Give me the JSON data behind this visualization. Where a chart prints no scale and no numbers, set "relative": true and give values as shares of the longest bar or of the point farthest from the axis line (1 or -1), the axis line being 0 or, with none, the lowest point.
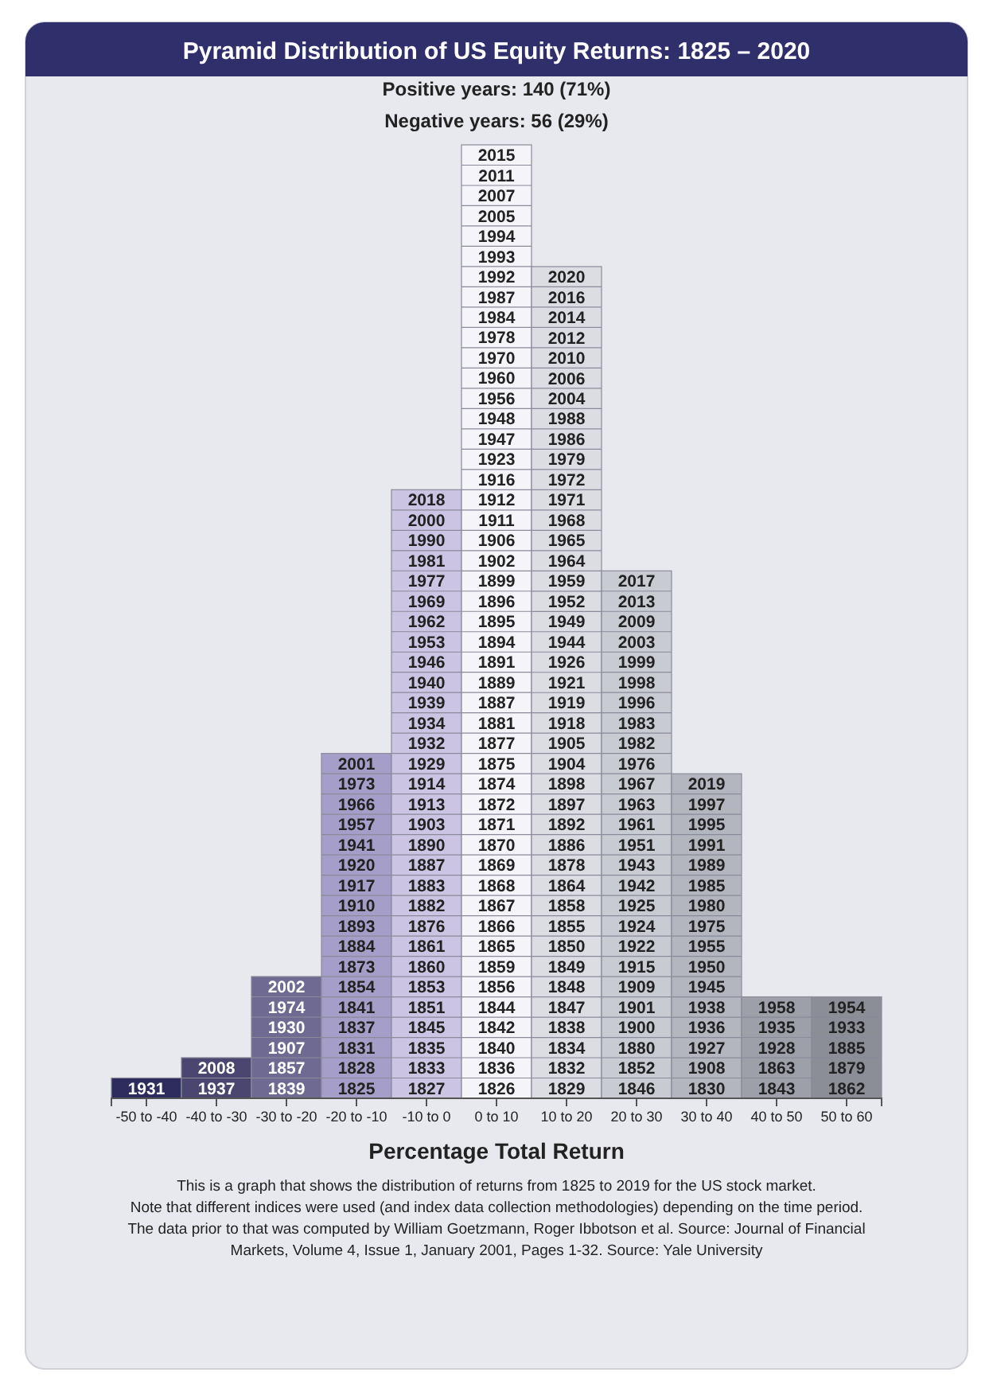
{
  "chart_data": {
    "type": "bar",
    "title": "Pyramid Distribution of US Equity Returns: 1825 – 2020",
    "subtitle": "Positive years: 140 (71%)\nNegative years: 56 (29%)",
    "xlabel": "Percentage Total Return",
    "relative": true,
    "categories": [
      "-50 to -40",
      "-40 to -30",
      "-30 to -20",
      "-20 to -10",
      "-10 to 0",
      "0 to 10",
      "10 to 20",
      "20 to 30",
      "30 to 40",
      "40 to 50",
      "50 to 60"
    ],
    "values": [
      0.0213,
      0.0426,
      0.1277,
      0.3617,
      0.6383,
      1,
      0.8723,
      0.5532,
      0.3404,
      0.1064,
      0.1064
    ],
    "colors": [
      "#2e2b5f",
      "#4a4670",
      "#6e6a92",
      "#a59ec8",
      "#cbc5e3",
      "#f5f5f9",
      "#dcdde3",
      "#c9cbd3",
      "#b4b6bf",
      "#9d9fa9",
      "#8b8d97"
    ],
    "annotations": [
      "1931",
      "1937",
      "2008",
      "1839",
      "1857",
      "1907",
      "1930",
      "1974",
      "2002",
      "1825",
      "1828",
      "1831",
      "1837",
      "1841",
      "1854",
      "1873",
      "1884",
      "1893",
      "1910",
      "1917",
      "1920",
      "1941",
      "1957",
      "1966",
      "1973",
      "2001",
      "1827",
      "1833",
      "1835",
      "1845",
      "1851",
      "1853",
      "1860",
      "1861",
      "1876",
      "1882",
      "1883",
      "1887",
      "1890",
      "1903",
      "1913",
      "1914",
      "1929",
      "1932",
      "1934",
      "1939",
      "1940",
      "1946",
      "1953",
      "1962",
      "1969",
      "1977",
      "1981",
      "1990",
      "2000",
      "2018",
      "1826",
      "1836",
      "1840",
      "1842",
      "1844",
      "1856",
      "1859",
      "1865",
      "1866",
      "1867",
      "1868",
      "1869",
      "1870",
      "1871",
      "1872",
      "1874",
      "1875",
      "1877",
      "1881",
      "1887",
      "1889",
      "1891",
      "1894",
      "1895",
      "1896",
      "1899",
      "1902",
      "1906",
      "1911",
      "1912",
      "1916",
      "1923",
      "1947",
      "1948",
      "1956",
      "1960",
      "1970",
      "1978",
      "1984",
      "1987",
      "1992",
      "1993",
      "1994",
      "2005",
      "2007",
      "2011",
      "2015",
      "1829",
      "1832",
      "1834",
      "1838",
      "1847",
      "1848",
      "1849",
      "1850",
      "1855",
      "1858",
      "1864",
      "1878",
      "1886",
      "1892",
      "1897",
      "1898",
      "1904",
      "1905",
      "1918",
      "1919",
      "1921",
      "1926",
      "1944",
      "1949",
      "1952",
      "1959",
      "1964",
      "1965",
      "1968",
      "1971",
      "1972",
      "1979",
      "1986",
      "1988",
      "2004",
      "2006",
      "2010",
      "2012",
      "2014",
      "2016",
      "2020",
      "1846",
      "1852",
      "1880",
      "1900",
      "1901",
      "1909",
      "1915",
      "1922",
      "1924",
      "1925",
      "1942",
      "1943",
      "1951",
      "1961",
      "1963",
      "1967",
      "1976",
      "1982",
      "1983",
      "1996",
      "1998",
      "1999",
      "2003",
      "2009",
      "2013",
      "2017",
      "1830",
      "1908",
      "1927",
      "1936",
      "1938",
      "1945",
      "1950",
      "1955",
      "1975",
      "1980",
      "1985",
      "1989",
      "1991",
      "1995",
      "1997",
      "2019",
      "1843",
      "1863",
      "1928",
      "1935",
      "1958",
      "1862",
      "1879",
      "1885",
      "1933",
      "1954",
      "This is a graph that shows the distribution of returns from 1825 to 2019 for the US stock market.",
      "Note that different indices were used (and index data collection methodologies) depending on the time period.",
      "The data prior to that was computed by William Goetzmann, Roger Ibbotson et al. Source: Journal of Financial Markets, Volume 4, Issue 1, January 2001, Pages 1-32. Source: Yale University"
    ]
  }
}
